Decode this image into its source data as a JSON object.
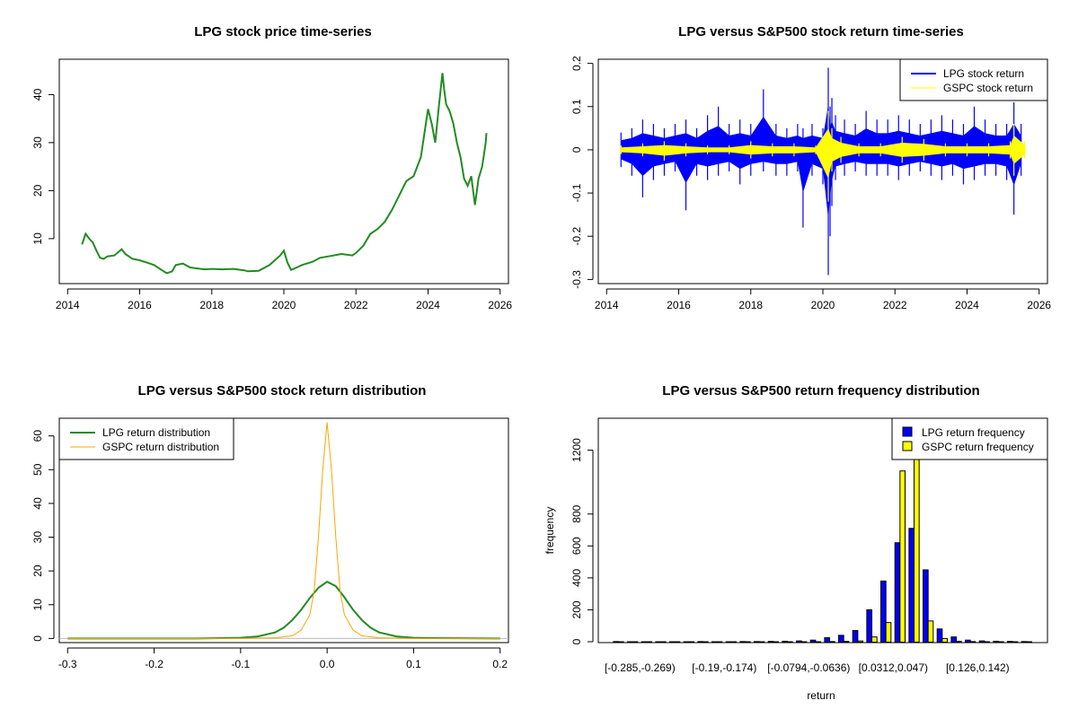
{
  "chart_data": [
    {
      "type": "line",
      "title": "LPG stock price time-series",
      "xlabel": "",
      "ylabel": "",
      "xlim": [
        2014.0,
        2026.0
      ],
      "ylim": [
        1.5,
        46.5
      ],
      "x_ticks": [
        2014,
        2016,
        2018,
        2020,
        2022,
        2024,
        2026
      ],
      "y_ticks": [
        10,
        20,
        30,
        40
      ],
      "grid": false,
      "color": "#228B22",
      "series": [
        {
          "x": [
            2014.4,
            2014.5,
            2014.6,
            2014.7,
            2014.8,
            2014.9,
            2015.0,
            2015.1,
            2015.3,
            2015.5,
            2015.6,
            2015.8,
            2016.0,
            2016.2,
            2016.4,
            2016.6,
            2016.75,
            2016.9,
            2017.0,
            2017.2,
            2017.4,
            2017.6,
            2017.8,
            2018.0,
            2018.3,
            2018.6,
            2018.9,
            2019.0,
            2019.3,
            2019.6,
            2019.9,
            2020.0,
            2020.1,
            2020.2,
            2020.3,
            2020.5,
            2020.8,
            2021.0,
            2021.3,
            2021.6,
            2021.9,
            2022.0,
            2022.2,
            2022.4,
            2022.6,
            2022.8,
            2023.0,
            2023.2,
            2023.4,
            2023.6,
            2023.8,
            2023.9,
            2024.0,
            2024.1,
            2024.2,
            2024.3,
            2024.4,
            2024.45,
            2024.5,
            2024.6,
            2024.7,
            2024.8,
            2024.9,
            2025.0,
            2025.1,
            2025.2,
            2025.3,
            2025.4,
            2025.5,
            2025.6,
            2025.62
          ],
          "y": [
            8.8,
            11.0,
            10.0,
            9.2,
            7.5,
            6.0,
            5.8,
            6.3,
            6.5,
            7.8,
            6.8,
            5.8,
            5.5,
            5.0,
            4.5,
            3.5,
            2.8,
            3.2,
            4.5,
            4.8,
            4.0,
            3.8,
            3.6,
            3.7,
            3.6,
            3.7,
            3.4,
            3.2,
            3.3,
            4.5,
            6.5,
            7.5,
            5.0,
            3.5,
            3.8,
            4.5,
            5.2,
            6.0,
            6.4,
            6.8,
            6.5,
            7.0,
            8.5,
            11.0,
            12.0,
            13.5,
            16.0,
            19.0,
            22.0,
            23.0,
            27.0,
            32.0,
            37.0,
            34.0,
            30.0,
            37.5,
            44.5,
            41.0,
            38.0,
            36.5,
            34.0,
            30.0,
            27.0,
            22.5,
            21.0,
            23.0,
            17.0,
            22.5,
            25.0,
            30.0,
            32.0
          ]
        }
      ]
    },
    {
      "type": "line",
      "title": "LPG versus S&P500 stock return time-series",
      "xlabel": "",
      "ylabel": "",
      "xlim": [
        2014.0,
        2026.0
      ],
      "ylim": [
        -0.3,
        0.2
      ],
      "x_ticks": [
        2014,
        2016,
        2018,
        2020,
        2022,
        2024,
        2026
      ],
      "y_ticks": [
        -0.3,
        -0.2,
        -0.1,
        0.0,
        0.1,
        0.2
      ],
      "grid": false,
      "legend_position": "top-right",
      "series": [
        {
          "name": "LPG stock return",
          "color": "#0000FF",
          "x": [
            2014.4,
            2014.7,
            2015.0,
            2015.3,
            2015.6,
            2015.9,
            2016.2,
            2016.5,
            2016.8,
            2017.1,
            2017.4,
            2017.7,
            2018.0,
            2018.35,
            2018.7,
            2019.0,
            2019.3,
            2019.45,
            2019.7,
            2020.0,
            2020.15,
            2020.2,
            2020.25,
            2020.35,
            2020.6,
            2020.9,
            2021.2,
            2021.5,
            2021.8,
            2022.1,
            2022.4,
            2022.7,
            2023.0,
            2023.3,
            2023.6,
            2023.9,
            2024.2,
            2024.5,
            2024.8,
            2025.1,
            2025.3,
            2025.5
          ],
          "y_high": [
            0.04,
            0.05,
            0.07,
            0.06,
            0.05,
            0.06,
            0.07,
            0.05,
            0.08,
            0.1,
            0.06,
            0.07,
            0.06,
            0.14,
            0.06,
            0.05,
            0.06,
            0.05,
            0.06,
            0.05,
            0.19,
            0.1,
            0.12,
            0.08,
            0.07,
            0.06,
            0.09,
            0.07,
            0.07,
            0.08,
            0.07,
            0.06,
            0.07,
            0.08,
            0.07,
            0.06,
            0.1,
            0.07,
            0.06,
            0.06,
            0.11,
            0.06
          ],
          "y_low": [
            -0.04,
            -0.06,
            -0.11,
            -0.07,
            -0.06,
            -0.05,
            -0.14,
            -0.06,
            -0.07,
            -0.06,
            -0.05,
            -0.08,
            -0.06,
            -0.05,
            -0.06,
            -0.06,
            -0.05,
            -0.18,
            -0.06,
            -0.08,
            -0.29,
            -0.2,
            -0.13,
            -0.07,
            -0.06,
            -0.05,
            -0.06,
            -0.06,
            -0.06,
            -0.07,
            -0.06,
            -0.05,
            -0.06,
            -0.07,
            -0.06,
            -0.08,
            -0.07,
            -0.06,
            -0.06,
            -0.07,
            -0.15,
            -0.06
          ]
        },
        {
          "name": "GSPC stock return",
          "color": "#FFFF00",
          "x": [
            2014.4,
            2015.0,
            2015.6,
            2016.2,
            2016.8,
            2017.4,
            2018.0,
            2018.6,
            2019.2,
            2019.8,
            2020.15,
            2020.25,
            2020.5,
            2021.0,
            2021.6,
            2022.2,
            2022.8,
            2023.4,
            2024.0,
            2024.6,
            2025.2,
            2025.3,
            2025.6
          ],
          "y_high": [
            0.01,
            0.015,
            0.02,
            0.015,
            0.01,
            0.01,
            0.02,
            0.015,
            0.015,
            0.01,
            0.09,
            0.05,
            0.03,
            0.015,
            0.015,
            0.03,
            0.025,
            0.015,
            0.015,
            0.015,
            0.02,
            0.06,
            0.02
          ],
          "y_low": [
            -0.01,
            -0.015,
            -0.025,
            -0.015,
            -0.01,
            -0.01,
            -0.02,
            -0.015,
            -0.015,
            -0.01,
            -0.12,
            -0.05,
            -0.03,
            -0.015,
            -0.015,
            -0.03,
            -0.025,
            -0.015,
            -0.015,
            -0.015,
            -0.02,
            -0.06,
            -0.02
          ]
        }
      ]
    },
    {
      "type": "line",
      "title": "LPG versus S&P500 stock return distribution",
      "xlabel": "",
      "ylabel": "",
      "xlim": [
        -0.3,
        0.2
      ],
      "ylim": [
        0,
        64
      ],
      "x_ticks": [
        -0.3,
        -0.2,
        -0.1,
        0.0,
        0.1,
        0.2
      ],
      "x_tick_labels": [
        "-0.3",
        "-0.2",
        "-0.1",
        "0.0",
        "0.1",
        "0.2"
      ],
      "y_ticks": [
        0,
        10,
        20,
        30,
        40,
        50,
        60
      ],
      "grid": false,
      "legend_position": "top-left",
      "series": [
        {
          "name": "LPG return distribution",
          "color": "#228B22",
          "x": [
            -0.3,
            -0.15,
            -0.1,
            -0.08,
            -0.06,
            -0.05,
            -0.04,
            -0.03,
            -0.02,
            -0.01,
            0.0,
            0.01,
            0.02,
            0.03,
            0.04,
            0.05,
            0.06,
            0.08,
            0.1,
            0.12,
            0.2
          ],
          "y": [
            0,
            0,
            0.2,
            0.6,
            1.8,
            3.2,
            5.5,
            8.5,
            12.0,
            15.0,
            16.8,
            15.5,
            12.2,
            8.5,
            5.5,
            3.2,
            1.8,
            0.6,
            0.2,
            0.1,
            0
          ]
        },
        {
          "name": "GSPC return distribution",
          "color": "#FFA500",
          "x": [
            -0.3,
            -0.1,
            -0.06,
            -0.04,
            -0.03,
            -0.02,
            -0.015,
            -0.01,
            -0.005,
            0.0,
            0.005,
            0.01,
            0.015,
            0.02,
            0.03,
            0.04,
            0.06,
            0.1,
            0.2
          ],
          "y": [
            0,
            0,
            0.2,
            0.8,
            2.5,
            7.0,
            14.0,
            30.0,
            50.0,
            64.0,
            50.0,
            30.0,
            14.0,
            7.0,
            2.5,
            0.8,
            0.2,
            0,
            0
          ]
        }
      ]
    },
    {
      "type": "bar",
      "title": "LPG versus S&P500 return frequency distribution",
      "xlabel": "return",
      "ylabel": "frequency",
      "ylim": [
        0,
        1400
      ],
      "y_ticks": [
        0,
        200,
        400,
        600,
        800,
        1200
      ],
      "grid": false,
      "legend_position": "top-right",
      "visible_category_labels": [
        "[-0.285,-0.269)",
        "[-0.19,-0.174)",
        "[-0.0794,-0.0636)",
        "[0.0312,0.047)",
        "[0.126,0.142)"
      ],
      "category_count": 30,
      "series": [
        {
          "name": "LPG return frequency",
          "color": "#0000FF",
          "values": [
            1,
            0,
            0,
            0,
            0,
            0,
            1,
            0,
            0,
            1,
            1,
            2,
            3,
            5,
            10,
            25,
            40,
            70,
            200,
            380,
            620,
            710,
            450,
            80,
            30,
            10,
            5,
            3,
            2,
            1
          ]
        },
        {
          "name": "GSPC return frequency",
          "color": "#FFFF00",
          "values": [
            0,
            0,
            0,
            0,
            0,
            0,
            0,
            0,
            0,
            0,
            0,
            0,
            0,
            0,
            0,
            1,
            2,
            5,
            30,
            120,
            1070,
            1400,
            130,
            20,
            3,
            1,
            0,
            0,
            0,
            0
          ]
        }
      ]
    }
  ]
}
